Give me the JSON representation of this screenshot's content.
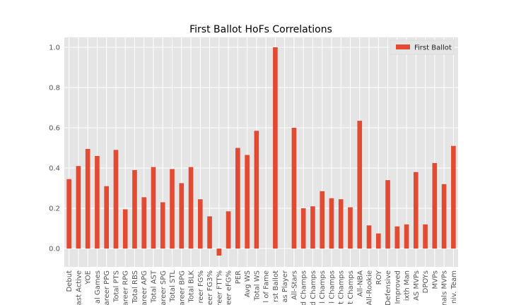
{
  "chart_data": {
    "type": "bar",
    "title": "First Ballot HoFs Correlations",
    "categories": [
      "Debut",
      "ast Active",
      "YOE",
      "al Games",
      "areer PPG",
      "Total PTS",
      "areer RPG",
      "Total RBS",
      "areer APG",
      "Total AST",
      "areer SPG",
      "Total STL",
      "areer BPG",
      "Total BLK",
      "reer FG%",
      "reer FG3%",
      "areer FTT%",
      "reer eFG%",
      "PER",
      "Avg WS",
      "Total WS",
      "l of Fame",
      "rst Ballot",
      "as Player",
      "All-Stars",
      "d Champs",
      "d Champs",
      "l Champs",
      "l Champs",
      "t Champs",
      "t Champs",
      "All-NBA",
      "All-Rookie",
      "ROY",
      "Defensive",
      "Improved",
      "ixth Man",
      "AS MVPs",
      "DPOYs",
      "MVPs",
      "inals MVPs",
      "niv. Team"
    ],
    "series": [
      {
        "name": "First Ballot",
        "color": "#e24a33",
        "values": [
          0.345,
          0.41,
          0.495,
          0.46,
          0.31,
          0.49,
          0.195,
          0.39,
          0.255,
          0.405,
          0.23,
          0.395,
          0.325,
          0.405,
          0.245,
          0.16,
          -0.035,
          0.185,
          0.5,
          0.465,
          0.585,
          null,
          1.0,
          null,
          0.6,
          0.2,
          0.21,
          0.285,
          0.25,
          0.245,
          0.205,
          0.635,
          0.115,
          0.075,
          0.34,
          0.11,
          0.12,
          0.38,
          0.12,
          0.425,
          0.32,
          0.51
        ]
      }
    ],
    "ylim": [
      -0.091,
      1.049
    ],
    "yticks": [
      {
        "value": 0,
        "label": "0.0"
      },
      {
        "value": 0.2,
        "label": "0.2"
      },
      {
        "value": 0.4,
        "label": "0.4"
      },
      {
        "value": 0.6,
        "label": "0.6"
      },
      {
        "value": 0.8,
        "label": "0.8"
      },
      {
        "value": 1,
        "label": "1.0"
      }
    ],
    "grid": true,
    "legend": "upper right"
  }
}
